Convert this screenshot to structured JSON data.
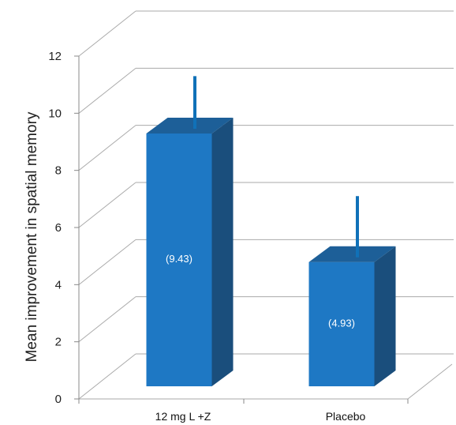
{
  "chart_data": {
    "type": "bar",
    "title": "",
    "xlabel": "",
    "ylabel": "Mean improvement in spatial memory",
    "categories": [
      "12 mg L +Z",
      "Placebo"
    ],
    "values": [
      9.43,
      4.93
    ],
    "data_labels": [
      "(9.43)",
      "(4.93)"
    ],
    "error_upper": [
      11.3,
      7.1
    ],
    "ylim": [
      0,
      12
    ],
    "yticks": [
      "0",
      "2",
      "4",
      "6",
      "8",
      "10",
      "12"
    ],
    "grid": true,
    "legend": "none",
    "colors": {
      "bar_front": "#1e78c4",
      "bar_side": "#1a4e7c",
      "bar_top": "#1d5f98",
      "error_bar": "#1071b8",
      "grid": "#aaaaaa",
      "axis": "#888888"
    }
  }
}
